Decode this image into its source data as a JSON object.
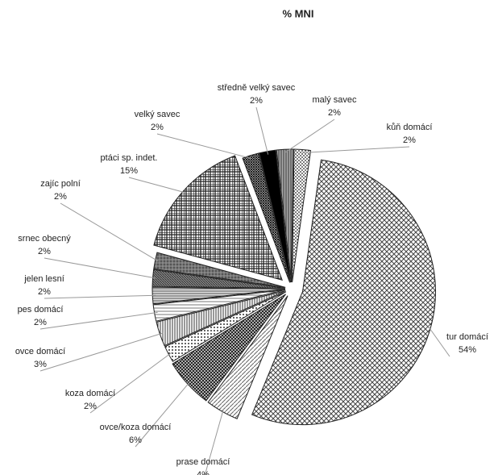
{
  "chart_data": {
    "type": "pie",
    "title": "% MNI",
    "categories": [
      "tur domácí",
      "prase domácí",
      "ovce/koza domácí",
      "koza domácí",
      "ovce domácí",
      "pes domácí",
      "jelen lesní",
      "srnec obecný",
      "zajíc polní",
      "ptáci sp. indet.",
      "velký savec",
      "středně velký savec",
      "malý savec",
      "kůň domácí"
    ],
    "values": [
      54,
      4,
      6,
      2,
      3,
      2,
      2,
      2,
      2,
      15,
      2,
      2,
      2,
      2
    ],
    "value_labels": [
      "54%",
      "4%",
      "6%",
      "2%",
      "3%",
      "2%",
      "2%",
      "2%",
      "2%",
      "15%",
      "2%",
      "2%",
      "2%",
      "2%"
    ]
  }
}
